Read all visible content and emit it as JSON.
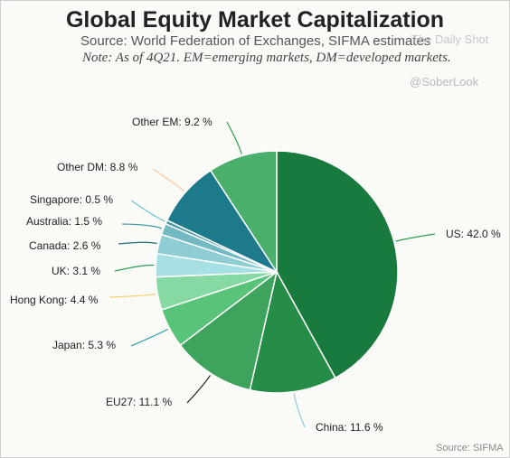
{
  "header": {
    "title": "Global Equity Market Capitalization",
    "subtitle": "Source: World Federation of Exchanges, SIFMA estimates",
    "note": "Note: As of 4Q21. EM=emerging markets, DM=developed markets.",
    "watermark": "The Daily Shot",
    "handle": "@SoberLook"
  },
  "footer": {
    "source": "Source: SIFMA"
  },
  "chart_data": {
    "type": "pie",
    "title": "Global Equity Market Capitalization",
    "unit": "%",
    "slices": [
      {
        "name": "US",
        "value": 42.0,
        "label": "US: 42.0 %",
        "color": "#187a3d"
      },
      {
        "name": "China",
        "value": 11.6,
        "label": "China: 11.6 %",
        "color": "#268d49"
      },
      {
        "name": "EU27",
        "value": 11.1,
        "label": "EU27: 11.1 %",
        "color": "#3ea35d"
      },
      {
        "name": "Japan",
        "value": 5.3,
        "label": "Japan: 5.3 %",
        "color": "#5ac37a"
      },
      {
        "name": "Hong Kong",
        "value": 4.4,
        "label": "Hong Kong: 4.4 %",
        "color": "#86d9a3"
      },
      {
        "name": "UK",
        "value": 3.1,
        "label": "UK: 3.1 %",
        "color": "#a6dfe4"
      },
      {
        "name": "Canada",
        "value": 2.6,
        "label": "Canada: 2.6 %",
        "color": "#8ecdd2"
      },
      {
        "name": "Australia",
        "value": 1.5,
        "label": "Australia: 1.5 %",
        "color": "#72b9c2"
      },
      {
        "name": "Singapore",
        "value": 0.5,
        "label": "Singapore: 0.5 %",
        "color": "#4a9aa6"
      },
      {
        "name": "Other DM",
        "value": 8.8,
        "label": "Other DM: 8.8 %",
        "color": "#1c7a8a"
      },
      {
        "name": "Other EM",
        "value": 9.2,
        "label": "Other EM: 9.2 %",
        "color": "#4aae6c"
      }
    ],
    "leader_colors": [
      "#2e9a57",
      "#8fcfd6",
      "#222222",
      "#2e9aa4",
      "#f5d36a",
      "#2e9a57",
      "#1c6f79",
      "#4a9aa6",
      "#6bc3cc",
      "#f5c9a4",
      "#2e9a57"
    ]
  }
}
